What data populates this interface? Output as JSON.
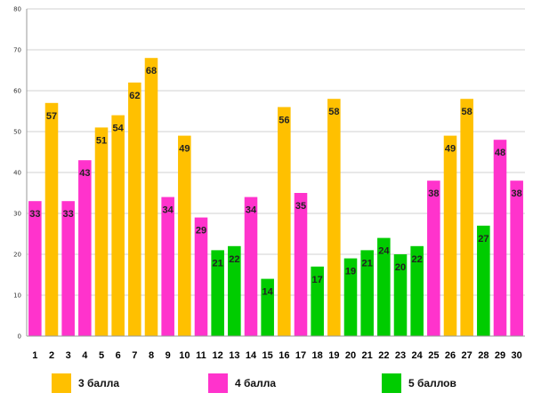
{
  "chart_data": {
    "type": "bar",
    "categories": [
      "1",
      "2",
      "3",
      "4",
      "5",
      "6",
      "7",
      "8",
      "9",
      "10",
      "11",
      "12",
      "13",
      "14",
      "15",
      "16",
      "17",
      "18",
      "19",
      "20",
      "21",
      "22",
      "23",
      "24",
      "25",
      "26",
      "27",
      "28",
      "29",
      "30"
    ],
    "values": [
      33,
      57,
      33,
      43,
      51,
      54,
      62,
      68,
      34,
      49,
      29,
      21,
      22,
      34,
      14,
      56,
      35,
      17,
      58,
      19,
      21,
      24,
      20,
      22,
      38,
      49,
      58,
      27,
      48,
      38
    ],
    "groups": [
      "4 балла",
      "3 балла",
      "4 балла",
      "4 балла",
      "3 балла",
      "3 балла",
      "3 балла",
      "3 балла",
      "4 балла",
      "3 балла",
      "4 балла",
      "5 баллов",
      "5 баллов",
      "4 балла",
      "5 баллов",
      "3 балла",
      "4 балла",
      "5 баллов",
      "3 балла",
      "5 баллов",
      "5 баллов",
      "5 баллов",
      "5 баллов",
      "5 баллов",
      "4 балла",
      "3 балла",
      "3 балла",
      "5 баллов",
      "4 балла",
      "4 балла"
    ],
    "legend": [
      {
        "name": "3 балла",
        "color": "#FFC000"
      },
      {
        "name": "4 балла",
        "color": "#FF33CC"
      },
      {
        "name": "5 баллов",
        "color": "#00CC00"
      }
    ],
    "ylim": [
      0,
      80
    ],
    "yticks": [
      0,
      10,
      20,
      30,
      40,
      50,
      60,
      70,
      80
    ],
    "grid": true,
    "legend_position": "bottom",
    "title": "",
    "xlabel": "",
    "ylabel": ""
  }
}
